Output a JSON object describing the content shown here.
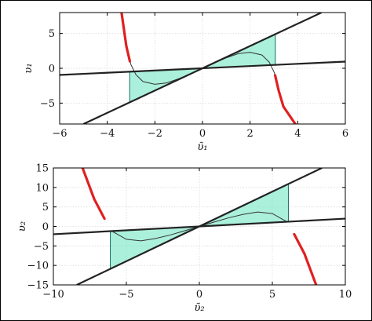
{
  "chart_data": [
    {
      "type": "line",
      "xlabel": "υ̃₁",
      "ylabel": "υ₁",
      "xlim": [
        -6,
        6
      ],
      "ylim": [
        -8,
        8
      ],
      "xticks": [
        -6,
        -4,
        -2,
        0,
        2,
        4,
        6
      ],
      "yticks": [
        -5,
        0,
        5
      ],
      "grid": true,
      "series": [
        {
          "color": "#e02020",
          "kind": "cubic-red",
          "points": [
            [
              -3.4,
              8
            ],
            [
              -3.2,
              3.2
            ],
            [
              -3.05,
              1.0
            ],
            [
              -3,
              0.48
            ],
            [
              -2.8,
              -0.9
            ],
            [
              -2.5,
              -1.9
            ],
            [
              -2,
              -2.3
            ],
            [
              -1.5,
              -2.1
            ],
            [
              -1,
              -1.5
            ],
            [
              -0.5,
              -0.8
            ],
            [
              0,
              0
            ],
            [
              0.5,
              0.8
            ],
            [
              1,
              1.5
            ],
            [
              1.5,
              2.1
            ],
            [
              2,
              2.3
            ],
            [
              2.5,
              1.9
            ],
            [
              2.8,
              0.9
            ],
            [
              3,
              -0.48
            ],
            [
              3.05,
              -1.0
            ],
            [
              3.2,
              -3.2
            ],
            [
              3.4,
              -5.5
            ],
            [
              3.9,
              -8
            ]
          ]
        },
        {
          "color": "#222222",
          "kind": "steep-line",
          "points": [
            [
              -5,
              -8
            ],
            [
              5,
              8
            ]
          ]
        },
        {
          "color": "#222222",
          "kind": "shallow-line",
          "points": [
            [
              -6,
              -0.96
            ],
            [
              6,
              0.96
            ]
          ]
        }
      ],
      "shaded_region": {
        "color": "#7ee8c8",
        "x_bounds": [
          -3.06,
          3.06
        ]
      }
    },
    {
      "type": "line",
      "xlabel": "υ̃₂",
      "ylabel": "υ₂",
      "xlim": [
        -10,
        10
      ],
      "ylim": [
        -15,
        15
      ],
      "xticks": [
        -10,
        -5,
        0,
        5,
        10
      ],
      "yticks": [
        -15,
        -10,
        -5,
        0,
        5,
        10,
        15
      ],
      "grid": true,
      "series": [
        {
          "color": "#e02020",
          "kind": "cubic-red",
          "points": [
            [
              -8,
              15
            ],
            [
              -7.2,
              7
            ],
            [
              -6.5,
              2
            ],
            [
              -6,
              -1.2
            ],
            [
              -5,
              -3.3
            ],
            [
              -4,
              -3.7
            ],
            [
              -3,
              -3.1
            ],
            [
              -2,
              -2.2
            ],
            [
              -1,
              -1.1
            ],
            [
              0,
              0
            ],
            [
              1,
              1.1
            ],
            [
              2,
              2.2
            ],
            [
              3,
              3.1
            ],
            [
              4,
              3.7
            ],
            [
              5,
              3.3
            ],
            [
              6,
              1.2
            ],
            [
              6.5,
              -2
            ],
            [
              7.2,
              -7
            ],
            [
              8,
              -15
            ]
          ]
        },
        {
          "color": "#222222",
          "kind": "steep-line",
          "points": [
            [
              -8.4,
              -15
            ],
            [
              8.4,
              15
            ]
          ]
        },
        {
          "color": "#222222",
          "kind": "shallow-line",
          "points": [
            [
              -10,
              -2
            ],
            [
              10,
              2
            ]
          ]
        }
      ],
      "shaded_region": {
        "color": "#7ee8c8",
        "x_bounds": [
          -6.1,
          6.1
        ]
      }
    }
  ]
}
